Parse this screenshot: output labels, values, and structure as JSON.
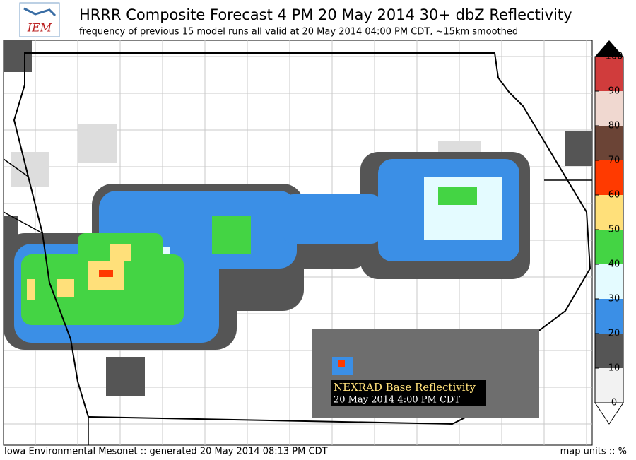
{
  "header": {
    "logo": "IEM",
    "title": "HRRR Composite Forecast 4 PM 20 May 2014 30+ dbZ Reflectivity",
    "subtitle": "frequency of previous 15 model runs all valid at 20 May 2014 04:00 PM CDT, ~15km smoothed"
  },
  "colorbar": {
    "ticks": [
      0,
      10,
      20,
      30,
      40,
      50,
      60,
      70,
      80,
      90,
      100
    ],
    "colors": [
      "#f2f2f2",
      "#555555",
      "#3b8fe6",
      "#e4fbff",
      "#44d444",
      "#ffe07a",
      "#ff3a00",
      "#6b4436",
      "#f0d8d0",
      "#d03c3c"
    ]
  },
  "inset": {
    "title": "NEXRAD Base Reflectivity",
    "time": "20 May 2014  4:00 PM CDT"
  },
  "footer": {
    "left": "Iowa Environmental Mesonet :: generated 20 May 2014 08:13 PM CDT",
    "right": "map units :: %"
  }
}
